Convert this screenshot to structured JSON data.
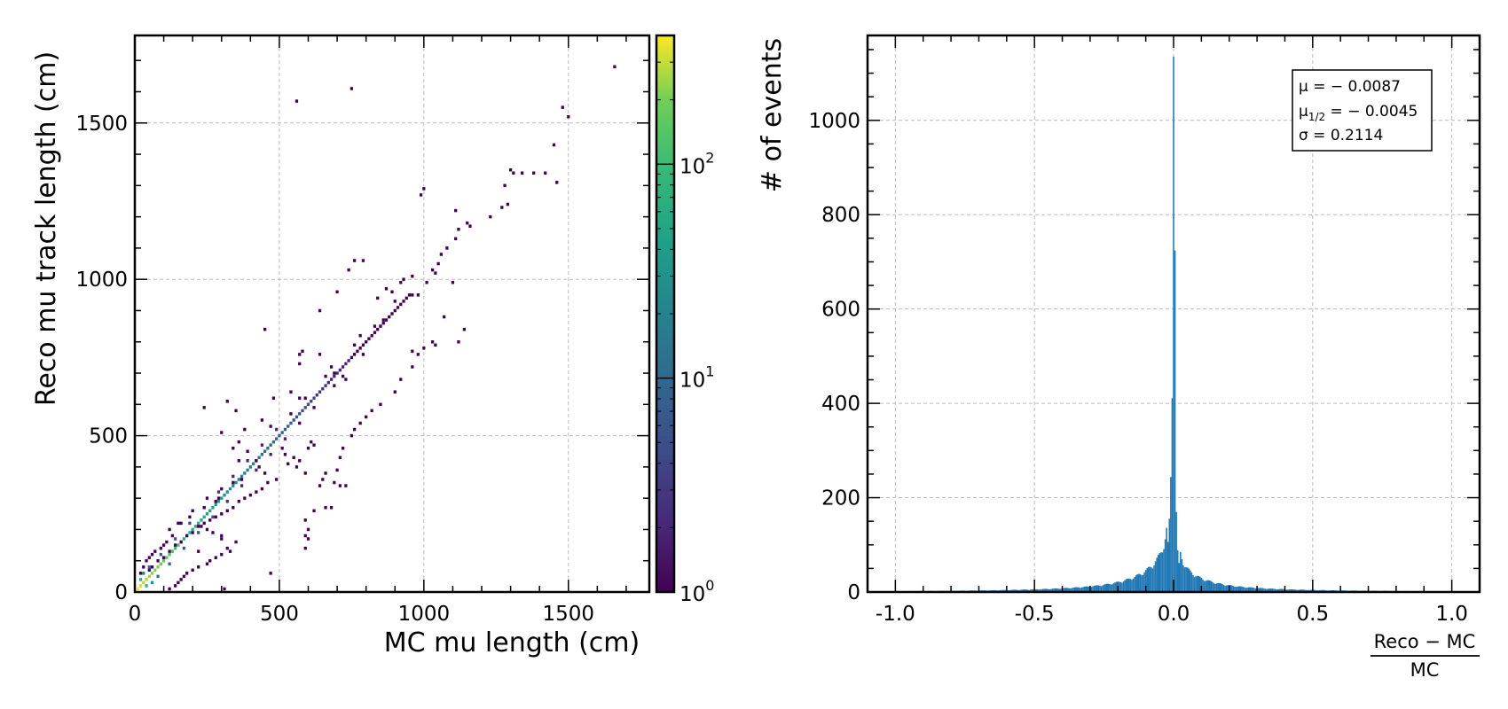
{
  "chart_data": [
    {
      "type": "heatmap",
      "xlabel": "MC mu length (cm)",
      "ylabel": "Reco mu track length (cm)",
      "xlim": [
        0,
        1780
      ],
      "ylim": [
        0,
        1780
      ],
      "xticks": [
        0,
        500,
        1000,
        1500
      ],
      "xtick_labels": [
        "0",
        "500",
        "1000",
        "1500"
      ],
      "yticks": [
        0,
        500,
        1000,
        1500
      ],
      "ytick_labels": [
        "0",
        "500",
        "1000",
        "1500"
      ],
      "grid": true,
      "colormap": "viridis",
      "color_scale": "log",
      "colorbar": {
        "range": [
          1,
          400
        ],
        "ticks": [
          {
            "value": 1,
            "base": "10",
            "exp": "0"
          },
          {
            "value": 10,
            "base": "10",
            "exp": "1"
          },
          {
            "value": 100,
            "base": "10",
            "exp": "2"
          }
        ]
      },
      "bin_width": 10,
      "diagonal_points": [
        [
          10,
          10,
          400
        ],
        [
          20,
          20,
          320
        ],
        [
          30,
          30,
          280
        ],
        [
          40,
          40,
          260
        ],
        [
          50,
          50,
          240
        ],
        [
          60,
          60,
          220
        ],
        [
          70,
          70,
          210
        ],
        [
          80,
          80,
          200
        ],
        [
          90,
          90,
          190
        ],
        [
          100,
          100,
          160
        ],
        [
          110,
          110,
          140
        ],
        [
          120,
          120,
          130
        ],
        [
          130,
          130,
          120
        ],
        [
          140,
          140,
          110
        ],
        [
          150,
          150,
          100
        ],
        [
          160,
          160,
          95
        ],
        [
          170,
          170,
          90
        ],
        [
          180,
          180,
          85
        ],
        [
          190,
          190,
          80
        ],
        [
          200,
          200,
          75
        ],
        [
          210,
          210,
          70
        ],
        [
          220,
          220,
          65
        ],
        [
          230,
          230,
          60
        ],
        [
          240,
          240,
          55
        ],
        [
          250,
          250,
          50
        ],
        [
          260,
          260,
          46
        ],
        [
          270,
          270,
          42
        ],
        [
          280,
          280,
          40
        ],
        [
          290,
          290,
          37
        ],
        [
          300,
          300,
          34
        ],
        [
          310,
          310,
          31
        ],
        [
          320,
          320,
          29
        ],
        [
          330,
          330,
          27
        ],
        [
          340,
          340,
          25
        ],
        [
          350,
          350,
          23
        ],
        [
          360,
          360,
          21
        ],
        [
          370,
          370,
          20
        ],
        [
          380,
          380,
          19
        ],
        [
          390,
          390,
          18
        ],
        [
          400,
          400,
          17
        ],
        [
          410,
          410,
          16
        ],
        [
          420,
          420,
          15
        ],
        [
          430,
          430,
          14
        ],
        [
          440,
          440,
          13
        ],
        [
          450,
          450,
          12
        ],
        [
          460,
          460,
          11
        ],
        [
          470,
          470,
          10
        ],
        [
          480,
          480,
          10
        ],
        [
          490,
          490,
          9
        ],
        [
          500,
          500,
          9
        ],
        [
          510,
          510,
          8
        ],
        [
          520,
          520,
          8
        ],
        [
          530,
          530,
          7
        ],
        [
          540,
          540,
          7
        ],
        [
          550,
          550,
          6
        ],
        [
          560,
          560,
          6
        ],
        [
          570,
          570,
          5
        ],
        [
          580,
          580,
          5
        ],
        [
          590,
          590,
          5
        ],
        [
          600,
          600,
          4
        ],
        [
          610,
          610,
          4
        ],
        [
          620,
          620,
          4
        ],
        [
          630,
          630,
          3
        ],
        [
          640,
          640,
          3
        ],
        [
          650,
          650,
          3
        ],
        [
          660,
          660,
          3
        ],
        [
          670,
          670,
          2
        ],
        [
          680,
          680,
          2
        ],
        [
          690,
          690,
          2
        ],
        [
          700,
          700,
          2
        ],
        [
          710,
          710,
          2
        ],
        [
          720,
          720,
          2
        ],
        [
          730,
          730,
          2
        ],
        [
          740,
          740,
          2
        ],
        [
          750,
          750,
          1
        ],
        [
          760,
          760,
          1
        ],
        [
          770,
          770,
          1
        ],
        [
          780,
          780,
          1
        ],
        [
          790,
          790,
          1
        ],
        [
          800,
          800,
          1
        ],
        [
          810,
          810,
          1
        ],
        [
          820,
          820,
          1
        ],
        [
          830,
          830,
          1
        ],
        [
          840,
          840,
          1
        ],
        [
          850,
          850,
          1
        ],
        [
          860,
          860,
          1
        ],
        [
          870,
          870,
          1
        ],
        [
          880,
          880,
          1
        ],
        [
          890,
          890,
          1
        ],
        [
          900,
          900,
          1
        ],
        [
          910,
          910,
          1
        ],
        [
          920,
          920,
          1
        ],
        [
          930,
          930,
          1
        ],
        [
          940,
          940,
          1
        ],
        [
          950,
          950,
          1
        ],
        [
          960,
          950,
          1
        ],
        [
          20,
          40,
          60
        ],
        [
          40,
          20,
          80
        ],
        [
          30,
          60,
          20
        ],
        [
          60,
          30,
          30
        ],
        [
          50,
          80,
          10
        ],
        [
          80,
          50,
          15
        ],
        [
          90,
          120,
          8
        ],
        [
          120,
          90,
          10
        ],
        [
          140,
          170,
          6
        ],
        [
          170,
          140,
          7
        ],
        [
          190,
          220,
          5
        ],
        [
          220,
          190,
          6
        ],
        [
          240,
          270,
          4
        ],
        [
          270,
          240,
          4
        ],
        [
          290,
          320,
          3
        ],
        [
          320,
          290,
          3
        ],
        [
          340,
          370,
          2
        ],
        [
          370,
          340,
          2
        ],
        [
          390,
          420,
          2
        ],
        [
          420,
          390,
          2
        ],
        [
          440,
          470,
          2
        ],
        [
          470,
          440,
          2
        ],
        [
          490,
          520,
          2
        ],
        [
          520,
          490,
          2
        ],
        [
          540,
          570,
          1
        ],
        [
          570,
          540,
          1
        ],
        [
          590,
          620,
          1
        ],
        [
          620,
          590,
          1
        ],
        [
          660,
          690,
          1
        ],
        [
          690,
          660,
          1
        ],
        [
          760,
          790,
          1
        ],
        [
          790,
          760,
          1
        ]
      ],
      "scatter_points": [
        [
          1660,
          1680
        ],
        [
          750,
          1610
        ],
        [
          560,
          1570
        ],
        [
          1480,
          1550
        ],
        [
          1500,
          1520
        ],
        [
          1450,
          1430
        ],
        [
          1300,
          1350
        ],
        [
          1310,
          1340
        ],
        [
          1340,
          1340
        ],
        [
          1380,
          1340
        ],
        [
          1420,
          1340
        ],
        [
          1460,
          1310
        ],
        [
          1280,
          1300
        ],
        [
          1000,
          1290
        ],
        [
          990,
          1270
        ],
        [
          1290,
          1240
        ],
        [
          1270,
          1230
        ],
        [
          1230,
          1200
        ],
        [
          1110,
          1220
        ],
        [
          1150,
          1180
        ],
        [
          1160,
          1170
        ],
        [
          1120,
          1160
        ],
        [
          1110,
          1130
        ],
        [
          1080,
          1100
        ],
        [
          1060,
          1080
        ],
        [
          1050,
          1050
        ],
        [
          1030,
          1030
        ],
        [
          1040,
          1020
        ],
        [
          760,
          1060
        ],
        [
          790,
          1060
        ],
        [
          740,
          1030
        ],
        [
          1010,
          990
        ],
        [
          1100,
          990
        ],
        [
          700,
          960
        ],
        [
          980,
          950
        ],
        [
          640,
          900
        ],
        [
          860,
          870
        ],
        [
          830,
          850
        ],
        [
          780,
          820
        ],
        [
          1070,
          880
        ],
        [
          1140,
          840
        ],
        [
          1120,
          800
        ],
        [
          450,
          840
        ],
        [
          960,
          770
        ],
        [
          1040,
          790
        ],
        [
          580,
          770
        ],
        [
          640,
          760
        ],
        [
          570,
          760
        ],
        [
          570,
          730
        ],
        [
          680,
          720
        ],
        [
          690,
          700
        ],
        [
          720,
          690
        ],
        [
          730,
          680
        ],
        [
          540,
          640
        ],
        [
          570,
          620
        ],
        [
          480,
          620
        ],
        [
          240,
          590
        ],
        [
          320,
          610
        ],
        [
          350,
          580
        ],
        [
          440,
          550
        ],
        [
          470,
          530
        ],
        [
          300,
          510
        ],
        [
          380,
          520
        ],
        [
          360,
          480
        ],
        [
          340,
          460
        ],
        [
          390,
          450
        ],
        [
          420,
          420
        ],
        [
          430,
          400
        ],
        [
          450,
          380
        ],
        [
          370,
          360
        ],
        [
          340,
          350
        ],
        [
          300,
          330
        ],
        [
          290,
          300
        ],
        [
          250,
          300
        ],
        [
          280,
          290
        ],
        [
          240,
          270
        ],
        [
          200,
          260
        ],
        [
          190,
          240
        ],
        [
          160,
          220
        ],
        [
          150,
          220
        ],
        [
          120,
          200
        ],
        [
          130,
          180
        ],
        [
          110,
          160
        ],
        [
          100,
          150
        ],
        [
          90,
          140
        ],
        [
          70,
          130
        ],
        [
          60,
          120
        ],
        [
          50,
          110
        ],
        [
          40,
          100
        ],
        [
          30,
          80
        ],
        [
          20,
          60
        ],
        [
          230,
          210
        ],
        [
          250,
          200
        ],
        [
          270,
          190
        ],
        [
          300,
          180
        ],
        [
          350,
          160
        ],
        [
          320,
          140
        ],
        [
          330,
          130
        ],
        [
          300,
          120
        ],
        [
          280,
          110
        ],
        [
          260,
          100
        ],
        [
          250,
          90
        ],
        [
          220,
          80
        ],
        [
          200,
          70
        ],
        [
          180,
          60
        ],
        [
          170,
          50
        ],
        [
          160,
          40
        ],
        [
          150,
          30
        ],
        [
          140,
          20
        ],
        [
          120,
          10
        ],
        [
          520,
          440
        ],
        [
          510,
          460
        ],
        [
          550,
          430
        ],
        [
          600,
          460
        ],
        [
          610,
          480
        ],
        [
          620,
          470
        ],
        [
          590,
          380
        ],
        [
          690,
          350
        ],
        [
          710,
          340
        ],
        [
          560,
          400
        ],
        [
          530,
          410
        ],
        [
          570,
          420
        ],
        [
          490,
          360
        ],
        [
          460,
          350
        ],
        [
          440,
          330
        ],
        [
          420,
          320
        ],
        [
          400,
          310
        ],
        [
          380,
          300
        ],
        [
          360,
          290
        ],
        [
          340,
          270
        ],
        [
          320,
          260
        ],
        [
          300,
          250
        ],
        [
          280,
          240
        ],
        [
          260,
          230
        ],
        [
          240,
          220
        ],
        [
          220,
          210
        ],
        [
          200,
          190
        ],
        [
          180,
          180
        ],
        [
          160,
          160
        ],
        [
          140,
          150
        ],
        [
          120,
          130
        ],
        [
          100,
          110
        ],
        [
          80,
          100
        ],
        [
          60,
          80
        ],
        [
          50,
          70
        ],
        [
          600,
          170
        ],
        [
          590,
          140
        ],
        [
          730,
          340
        ],
        [
          660,
          270
        ],
        [
          680,
          270
        ],
        [
          620,
          260
        ],
        [
          590,
          180
        ],
        [
          360,
          420
        ],
        [
          300,
          170
        ],
        [
          220,
          130
        ],
        [
          470,
          60
        ],
        [
          310,
          10
        ],
        [
          600,
          200
        ],
        [
          590,
          230
        ],
        [
          640,
          340
        ],
        [
          650,
          360
        ],
        [
          660,
          380
        ],
        [
          700,
          390
        ],
        [
          710,
          430
        ],
        [
          720,
          460
        ],
        [
          750,
          500
        ],
        [
          760,
          520
        ],
        [
          780,
          540
        ],
        [
          800,
          560
        ],
        [
          820,
          580
        ],
        [
          850,
          600
        ],
        [
          900,
          640
        ],
        [
          920,
          680
        ],
        [
          960,
          720
        ],
        [
          980,
          760
        ],
        [
          1000,
          780
        ],
        [
          1030,
          800
        ],
        [
          890,
          960
        ],
        [
          840,
          940
        ],
        [
          870,
          970
        ],
        [
          900,
          930
        ],
        [
          920,
          990
        ],
        [
          930,
          1000
        ],
        [
          960,
          1010
        ]
      ]
    },
    {
      "type": "histogram",
      "xlabel_numerator": "Reco − MC",
      "xlabel_denominator": "MC",
      "ylabel": "# of events",
      "xlim": [
        -1.1,
        1.1
      ],
      "ylim": [
        0,
        1180
      ],
      "xticks": [
        -1.0,
        -0.5,
        0.0,
        0.5,
        1.0
      ],
      "xtick_labels": [
        "-1.0",
        "-0.5",
        "0.0",
        "0.5",
        "1.0"
      ],
      "yticks": [
        0,
        200,
        400,
        600,
        800,
        1000
      ],
      "ytick_labels": [
        "0",
        "200",
        "400",
        "600",
        "800",
        "1000"
      ],
      "grid": true,
      "bar_color": "#1f77b4",
      "bin_width": 0.005,
      "peak": {
        "center": 0.0,
        "height": 1135
      },
      "stats": [
        {
          "label": "μ = − 0.0087"
        },
        {
          "label_main": "μ",
          "label_sub": "1/2",
          "label_rest": " = − 0.0045"
        },
        {
          "label": "σ = 0.2114"
        }
      ],
      "stats_position": "top-right"
    }
  ]
}
